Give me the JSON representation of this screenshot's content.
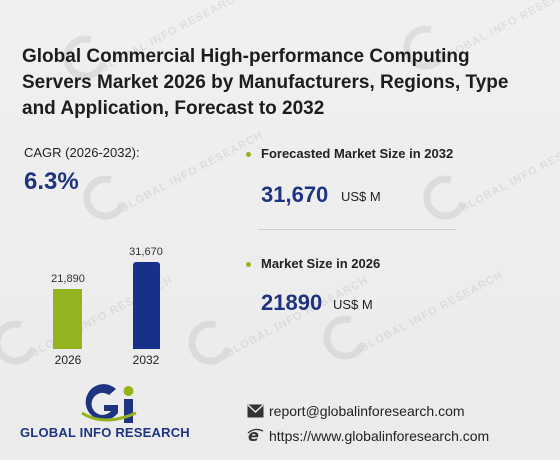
{
  "title": "Global Commercial High-performance Computing Servers Market 2026 by Manufacturers, Regions, Type and Application, Forecast to 2032",
  "cagr": {
    "label": "CAGR (2026-2032):",
    "value": "6.3%"
  },
  "chart_data": {
    "type": "bar",
    "categories": [
      "2026",
      "2032"
    ],
    "values": [
      21890,
      31670
    ],
    "value_labels": [
      "21,890",
      "31,670"
    ],
    "colors": [
      "#94b41f",
      "#17308a"
    ]
  },
  "forecast": {
    "label": "Forecasted Market Size in 2032",
    "value": "31,670",
    "unit": "US$ M"
  },
  "current": {
    "label": "Market Size in 2026",
    "value": "21890",
    "unit": "US$ M"
  },
  "brand": {
    "logo_text": "GLOBAL INFO RESEARCH",
    "accent": "#1f3480",
    "green": "#94b41f"
  },
  "watermark": {
    "text": "GLOBAL INFO RESEARCH"
  },
  "contact": {
    "email": "report@globalinforesearch.com",
    "website": "https://www.globalinforesearch.com",
    "email_icon": "envelope-icon",
    "web_icon": "browser-e-icon"
  }
}
